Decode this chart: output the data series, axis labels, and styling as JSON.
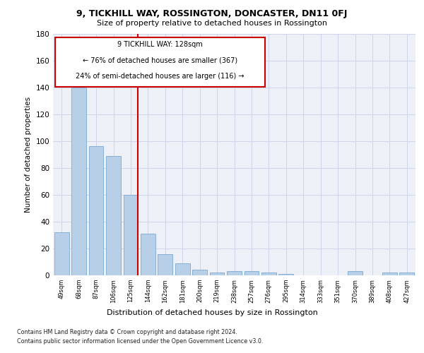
{
  "title": "9, TICKHILL WAY, ROSSINGTON, DONCASTER, DN11 0FJ",
  "subtitle": "Size of property relative to detached houses in Rossington",
  "xlabel": "Distribution of detached houses by size in Rossington",
  "ylabel": "Number of detached properties",
  "categories": [
    "49sqm",
    "68sqm",
    "87sqm",
    "106sqm",
    "125sqm",
    "144sqm",
    "162sqm",
    "181sqm",
    "200sqm",
    "219sqm",
    "238sqm",
    "257sqm",
    "276sqm",
    "295sqm",
    "314sqm",
    "333sqm",
    "351sqm",
    "370sqm",
    "389sqm",
    "408sqm",
    "427sqm"
  ],
  "values": [
    32,
    140,
    96,
    89,
    60,
    31,
    16,
    9,
    4,
    2,
    3,
    3,
    2,
    1,
    0,
    0,
    0,
    3,
    0,
    2,
    2
  ],
  "bar_color": "#b8cfe8",
  "bar_edge_color": "#7aaad0",
  "marker_line_color": "#cc0000",
  "box_text_line1": "9 TICKHILL WAY: 128sqm",
  "box_text_line2": "← 76% of detached houses are smaller (367)",
  "box_text_line3": "24% of semi-detached houses are larger (116) →",
  "ylim": [
    0,
    180
  ],
  "yticks": [
    0,
    20,
    40,
    60,
    80,
    100,
    120,
    140,
    160,
    180
  ],
  "plot_bg_color": "#eef0f8",
  "grid_color": "#d0d4e8",
  "footer_line1": "Contains HM Land Registry data © Crown copyright and database right 2024.",
  "footer_line2": "Contains public sector information licensed under the Open Government Licence v3.0."
}
